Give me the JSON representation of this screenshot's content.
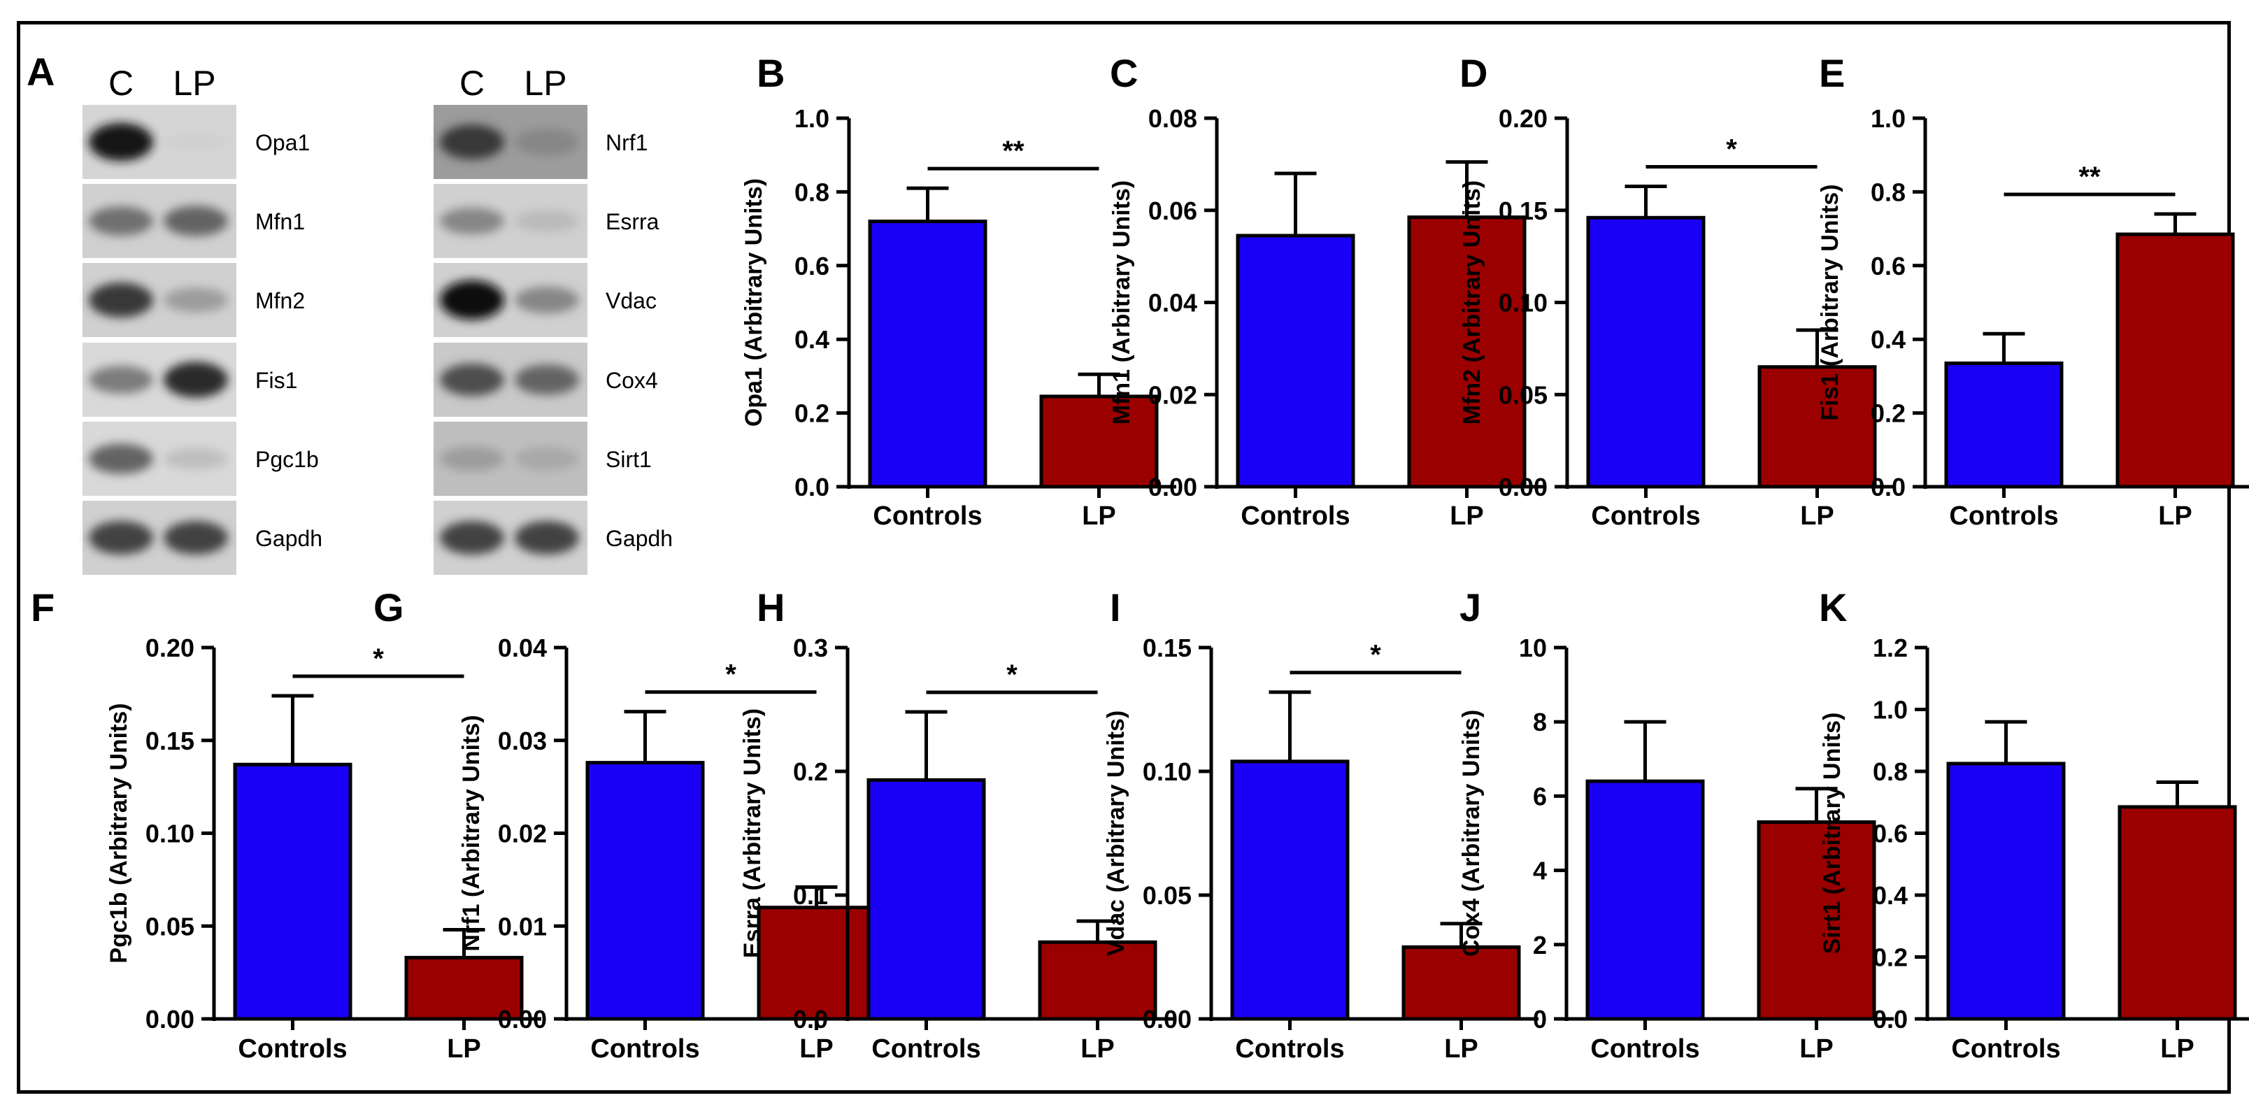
{
  "figure": {
    "colors": {
      "control": "#1a00f5",
      "lp": "#9b0000",
      "axis": "#000000"
    },
    "blots": [
      {
        "letter": "A",
        "lane_headers": [
          "C",
          "LP"
        ],
        "bands": [
          {
            "label": "Opa1",
            "c": 0.95,
            "lp": 0.12,
            "bg": 0.1
          },
          {
            "label": "Mfn1",
            "c": 0.55,
            "lp": 0.6,
            "bg": 0.12
          },
          {
            "label": "Mfn2",
            "c": 0.8,
            "lp": 0.35,
            "bg": 0.12
          },
          {
            "label": "Fis1",
            "c": 0.5,
            "lp": 0.85,
            "bg": 0.08
          },
          {
            "label": "Pgc1b",
            "c": 0.6,
            "lp": 0.2,
            "bg": 0.08
          },
          {
            "label": "Gapdh",
            "c": 0.75,
            "lp": 0.75,
            "bg": 0.12
          }
        ]
      },
      {
        "letter": "",
        "lane_headers": [
          "C",
          "LP"
        ],
        "bands": [
          {
            "label": "Nrf1",
            "c": 0.8,
            "lp": 0.45,
            "bg": 0.35
          },
          {
            "label": "Esrra",
            "c": 0.45,
            "lp": 0.22,
            "bg": 0.12
          },
          {
            "label": "Vdac",
            "c": 1.0,
            "lp": 0.45,
            "bg": 0.12
          },
          {
            "label": "Cox4",
            "c": 0.7,
            "lp": 0.6,
            "bg": 0.15
          },
          {
            "label": "Sirt1",
            "c": 0.35,
            "lp": 0.3,
            "bg": 0.2
          },
          {
            "label": "Gapdh",
            "c": 0.75,
            "lp": 0.75,
            "bg": 0.12
          }
        ]
      }
    ]
  },
  "chart_data": [
    {
      "panel": "B",
      "type": "bar",
      "categories": [
        "Controls",
        "LP"
      ],
      "values": [
        0.72,
        0.245
      ],
      "errors": [
        0.09,
        0.06
      ],
      "ylabel": "Opa1 (Arbitrary Units)",
      "ylim": [
        0,
        1.0
      ],
      "ticks": [
        0.0,
        0.2,
        0.4,
        0.6,
        0.8,
        1.0
      ],
      "tick_labels": [
        "0.0",
        "0.2",
        "0.4",
        "0.6",
        "0.8",
        "1.0"
      ],
      "significance": "**"
    },
    {
      "panel": "C",
      "type": "bar",
      "categories": [
        "Controls",
        "LP"
      ],
      "values": [
        0.0545,
        0.0585
      ],
      "errors": [
        0.0135,
        0.012
      ],
      "ylabel": "Mfn1 (Arbitrary Units)",
      "ylim": [
        0,
        0.08
      ],
      "ticks": [
        0.0,
        0.02,
        0.04,
        0.06,
        0.08
      ],
      "tick_labels": [
        "0.00",
        "0.02",
        "0.04",
        "0.06",
        "0.08"
      ],
      "significance": ""
    },
    {
      "panel": "D",
      "type": "bar",
      "categories": [
        "Controls",
        "LP"
      ],
      "values": [
        0.146,
        0.065
      ],
      "errors": [
        0.017,
        0.02
      ],
      "ylabel": "Mfn2 (Arbitrary Units)",
      "ylim": [
        0,
        0.2
      ],
      "ticks": [
        0.0,
        0.05,
        0.1,
        0.15,
        0.2
      ],
      "tick_labels": [
        "0.00",
        "0.05",
        "0.10",
        "0.15",
        "0.20"
      ],
      "significance": "*"
    },
    {
      "panel": "E",
      "type": "bar",
      "categories": [
        "Controls",
        "LP"
      ],
      "values": [
        0.335,
        0.685
      ],
      "errors": [
        0.08,
        0.055
      ],
      "ylabel": "Fis1 (Arbitrary Units)",
      "ylim": [
        0,
        1.0
      ],
      "ticks": [
        0.0,
        0.2,
        0.4,
        0.6,
        0.8,
        1.0
      ],
      "tick_labels": [
        "0.0",
        "0.2",
        "0.4",
        "0.6",
        "0.8",
        "1.0"
      ],
      "significance": "**"
    },
    {
      "panel": "F",
      "type": "bar",
      "categories": [
        "Controls",
        "LP"
      ],
      "values": [
        0.137,
        0.033
      ],
      "errors": [
        0.037,
        0.015
      ],
      "ylabel": "Pgc1b (Arbitrary Units)",
      "ylim": [
        0,
        0.2
      ],
      "ticks": [
        0.0,
        0.05,
        0.1,
        0.15,
        0.2
      ],
      "tick_labels": [
        "0.00",
        "0.05",
        "0.10",
        "0.15",
        "0.20"
      ],
      "significance": "*"
    },
    {
      "panel": "G",
      "type": "bar",
      "categories": [
        "Controls",
        "LP"
      ],
      "values": [
        0.0276,
        0.012
      ],
      "errors": [
        0.0055,
        0.0022
      ],
      "ylabel": "Nrf1 (Arbitrary Units)",
      "ylim": [
        0,
        0.04
      ],
      "ticks": [
        0.0,
        0.01,
        0.02,
        0.03,
        0.04
      ],
      "tick_labels": [
        "0.00",
        "0.01",
        "0.02",
        "0.03",
        "0.04"
      ],
      "significance": "*"
    },
    {
      "panel": "H",
      "type": "bar",
      "categories": [
        "Controls",
        "LP"
      ],
      "values": [
        0.193,
        0.062
      ],
      "errors": [
        0.055,
        0.017
      ],
      "ylabel": "Esrra (Arbitrary Units)",
      "ylim": [
        0,
        0.3
      ],
      "ticks": [
        0.0,
        0.1,
        0.2,
        0.3
      ],
      "tick_labels": [
        "0.0",
        "0.1",
        "0.2",
        "0.3"
      ],
      "significance": "*"
    },
    {
      "panel": "I",
      "type": "bar",
      "categories": [
        "Controls",
        "LP"
      ],
      "values": [
        0.104,
        0.029
      ],
      "errors": [
        0.028,
        0.0095
      ],
      "ylabel": "Vdac (Arbitrary Units)",
      "ylim": [
        0,
        0.15
      ],
      "ticks": [
        0.0,
        0.05,
        0.1,
        0.15
      ],
      "tick_labels": [
        "0.00",
        "0.05",
        "0.10",
        "0.15"
      ],
      "significance": "*"
    },
    {
      "panel": "J",
      "type": "bar",
      "categories": [
        "Controls",
        "LP"
      ],
      "values": [
        6.4,
        5.3
      ],
      "errors": [
        1.6,
        0.9
      ],
      "ylabel": "Cox4 (Arbitrary Units)",
      "ylim": [
        0,
        10
      ],
      "ticks": [
        0,
        2,
        4,
        6,
        8,
        10
      ],
      "tick_labels": [
        "0",
        "2",
        "4",
        "6",
        "8",
        "10"
      ],
      "significance": ""
    },
    {
      "panel": "K",
      "type": "bar",
      "categories": [
        "Controls",
        "LP"
      ],
      "values": [
        0.825,
        0.685
      ],
      "errors": [
        0.135,
        0.08
      ],
      "ylabel": "Sirt1 (Arbitrary Units)",
      "ylim": [
        0,
        1.2
      ],
      "ticks": [
        0.0,
        0.2,
        0.4,
        0.6,
        0.8,
        1.0,
        1.2
      ],
      "tick_labels": [
        "0.0",
        "0.2",
        "0.4",
        "0.6",
        "0.8",
        "1.0",
        "1.2"
      ],
      "significance": ""
    }
  ]
}
